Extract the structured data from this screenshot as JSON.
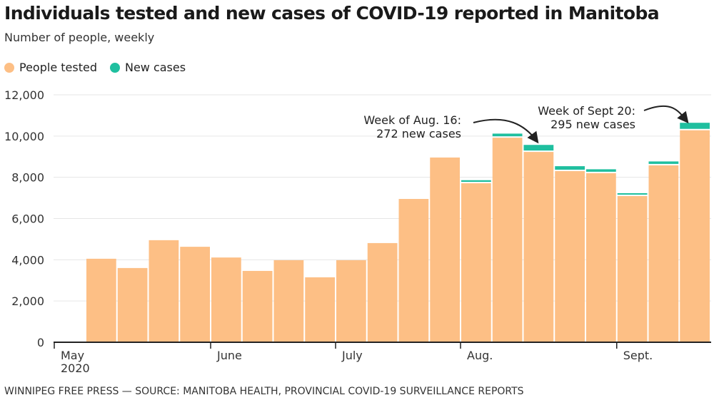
{
  "title": "Individuals tested and new cases of COVID-19 reported in Manitoba",
  "subtitle": "Number of people, weekly",
  "source": "WINNIPEG FREE PRESS — SOURCE: MANITOBA HEALTH, PROVINCIAL COVID-19 SURVEILLANCE REPORTS",
  "colors": {
    "tested": "#fdbf85",
    "cases": "#1fbf9f"
  },
  "chart_data": {
    "type": "bar",
    "stacked": true,
    "title": "Individuals tested and new cases of COVID-19 reported in Manitoba",
    "ylabel": "Number of people, weekly",
    "ylim": [
      0,
      12000
    ],
    "yticks": [
      "0",
      "2,000",
      "4,000",
      "6,000",
      "8,000",
      "10,000",
      "12,000"
    ],
    "ytick_values": [
      0,
      2000,
      4000,
      6000,
      8000,
      10000,
      12000
    ],
    "grid": true,
    "legend": {
      "placement": "top-left",
      "entries": [
        "People tested",
        "New cases"
      ]
    },
    "month_ticks": [
      {
        "label": "May",
        "label2": "2020",
        "bar_index": -1
      },
      {
        "label": "June",
        "bar_index": 4
      },
      {
        "label": "July",
        "bar_index": 8
      },
      {
        "label": "Aug.",
        "bar_index": 12
      },
      {
        "label": "Sept.",
        "bar_index": 17
      }
    ],
    "series": [
      {
        "name": "People tested",
        "values": [
          4050,
          3600,
          4950,
          4630,
          4110,
          3460,
          3980,
          3150,
          3980,
          4810,
          6950,
          8960,
          7710,
          9920,
          9230,
          8300,
          8200,
          7090,
          8580,
          10280
        ]
      },
      {
        "name": "New cases",
        "values": [
          0,
          0,
          0,
          0,
          0,
          0,
          0,
          0,
          0,
          0,
          0,
          0,
          80,
          130,
          272,
          170,
          120,
          70,
          120,
          295
        ]
      }
    ],
    "annotations": [
      {
        "line1": "Week of Aug. 16:",
        "line2": "272 new cases",
        "bar_index": 14
      },
      {
        "line1": "Week of Sept 20:",
        "line2": "295 new cases",
        "bar_index": 19
      }
    ]
  }
}
